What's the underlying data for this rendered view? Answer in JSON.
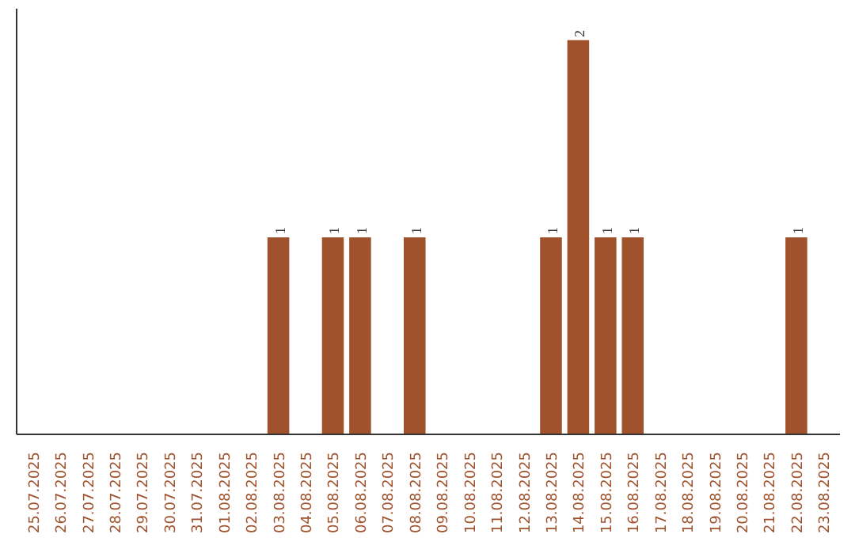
{
  "chart_data": {
    "type": "bar",
    "categories": [
      "25.07.2025",
      "26.07.2025",
      "27.07.2025",
      "28.07.2025",
      "29.07.2025",
      "30.07.2025",
      "31.07.2025",
      "01.08.2025",
      "02.08.2025",
      "03.08.2025",
      "04.08.2025",
      "05.08.2025",
      "06.08.2025",
      "07.08.2025",
      "08.08.2025",
      "09.08.2025",
      "10.08.2025",
      "11.08.2025",
      "12.08.2025",
      "13.08.2025",
      "14.08.2025",
      "15.08.2025",
      "16.08.2025",
      "17.08.2025",
      "18.08.2025",
      "19.08.2025",
      "20.08.2025",
      "21.08.2025",
      "22.08.2025",
      "23.08.2025"
    ],
    "values": [
      0,
      0,
      0,
      0,
      0,
      0,
      0,
      0,
      0,
      1,
      0,
      1,
      1,
      0,
      1,
      0,
      0,
      0,
      0,
      1,
      2,
      1,
      1,
      0,
      0,
      0,
      0,
      0,
      1,
      0
    ],
    "value_labels": [
      null,
      null,
      null,
      null,
      null,
      null,
      null,
      null,
      null,
      "1",
      null,
      "1",
      "1",
      null,
      "1",
      null,
      null,
      null,
      null,
      "1",
      "2",
      "1",
      "1",
      null,
      null,
      null,
      null,
      null,
      "1",
      null
    ],
    "color": "#a0522d",
    "grid": false
  }
}
